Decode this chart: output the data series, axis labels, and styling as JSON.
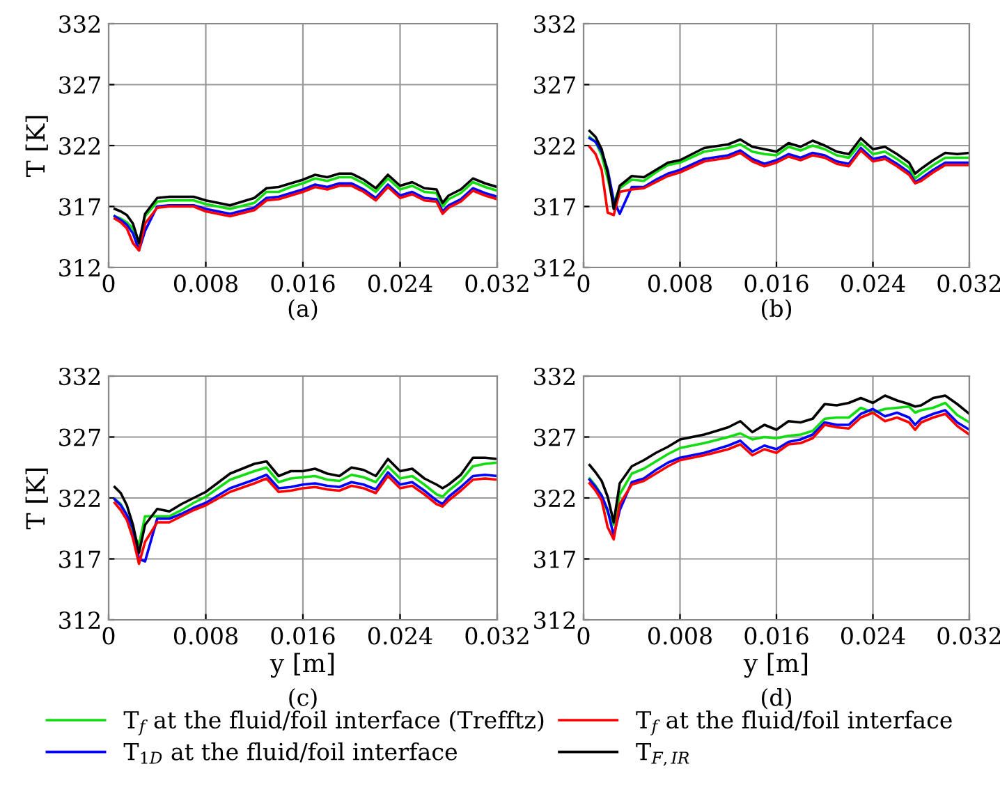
{
  "chart_data": [
    {
      "type": "line",
      "ylabel": "T [K]",
      "annotations": [
        "(a)"
      ],
      "xlim": [
        0,
        0.032
      ],
      "ylim": [
        312,
        332
      ],
      "xticks": [
        0,
        0.008,
        0.016,
        0.024,
        0.032
      ],
      "yticks": [
        312,
        317,
        322,
        327,
        332
      ],
      "grid": true,
      "legend": false,
      "x": [
        0.0005,
        0.001,
        0.0015,
        0.002,
        0.0025,
        0.003,
        0.004,
        0.005,
        0.006,
        0.007,
        0.008,
        0.01,
        0.012,
        0.013,
        0.014,
        0.015,
        0.016,
        0.017,
        0.018,
        0.019,
        0.02,
        0.021,
        0.022,
        0.023,
        0.024,
        0.025,
        0.026,
        0.027,
        0.0275,
        0.028,
        0.029,
        0.03,
        0.031,
        0.032
      ],
      "series": [
        {
          "color": "#11dd11",
          "values": [
            316.2,
            316.0,
            315.7,
            315.2,
            313.8,
            316.2,
            317.4,
            317.5,
            317.5,
            317.5,
            317.2,
            316.8,
            317.3,
            318.2,
            318.2,
            318.6,
            318.9,
            319.3,
            319.1,
            319.4,
            319.4,
            318.9,
            318.2,
            319.3,
            318.4,
            318.7,
            318.2,
            318.1,
            317.0,
            317.6,
            318.1,
            319.0,
            318.6,
            318.3
          ]
        },
        {
          "color": "#0000ff",
          "values": [
            316.2,
            315.9,
            315.5,
            314.8,
            313.4,
            315.0,
            317.0,
            317.1,
            317.1,
            317.1,
            316.8,
            316.4,
            316.9,
            317.7,
            317.8,
            318.1,
            318.4,
            318.8,
            318.6,
            318.9,
            318.9,
            318.4,
            317.7,
            318.8,
            317.9,
            318.2,
            317.7,
            317.6,
            316.6,
            317.1,
            317.6,
            318.5,
            318.1,
            317.8
          ]
        },
        {
          "color": "#ff0000",
          "values": [
            316.0,
            315.7,
            315.2,
            314.0,
            313.4,
            315.6,
            316.9,
            317.0,
            317.0,
            317.0,
            316.6,
            316.2,
            316.7,
            317.5,
            317.6,
            317.9,
            318.2,
            318.6,
            318.4,
            318.7,
            318.7,
            318.2,
            317.5,
            318.6,
            317.7,
            318.0,
            317.5,
            317.4,
            316.4,
            316.9,
            317.4,
            318.3,
            317.9,
            317.6
          ]
        },
        {
          "color": "#000000",
          "values": [
            316.8,
            316.6,
            316.3,
            315.6,
            314.0,
            316.4,
            317.7,
            317.8,
            317.8,
            317.8,
            317.5,
            317.1,
            317.7,
            318.5,
            318.6,
            318.9,
            319.2,
            319.6,
            319.4,
            319.7,
            319.7,
            319.2,
            318.5,
            319.6,
            318.7,
            319.0,
            318.5,
            318.4,
            317.3,
            317.9,
            318.4,
            319.3,
            318.9,
            318.6
          ]
        }
      ]
    },
    {
      "type": "line",
      "annotations": [
        "(b)"
      ],
      "xlim": [
        0,
        0.032
      ],
      "ylim": [
        312,
        332
      ],
      "xticks": [
        0,
        0.008,
        0.016,
        0.024,
        0.032
      ],
      "yticks": [
        312,
        317,
        322,
        327,
        332
      ],
      "grid": true,
      "legend": false,
      "x": [
        0.0005,
        0.001,
        0.0015,
        0.002,
        0.0025,
        0.003,
        0.004,
        0.005,
        0.006,
        0.007,
        0.008,
        0.01,
        0.012,
        0.013,
        0.014,
        0.015,
        0.016,
        0.017,
        0.018,
        0.019,
        0.02,
        0.021,
        0.022,
        0.023,
        0.024,
        0.025,
        0.026,
        0.027,
        0.0275,
        0.028,
        0.029,
        0.03,
        0.031,
        0.032
      ],
      "series": [
        {
          "color": "#11dd11",
          "values": [
            322.7,
            322.3,
            321.2,
            319.3,
            317.3,
            318.5,
            319.2,
            319.1,
            319.8,
            320.4,
            320.6,
            321.5,
            321.8,
            322.1,
            321.5,
            321.3,
            321.2,
            321.9,
            321.6,
            322.0,
            321.7,
            321.2,
            321.0,
            322.2,
            321.3,
            321.5,
            320.9,
            320.2,
            319.3,
            319.7,
            320.4,
            321.0,
            321.0,
            321.0
          ]
        },
        {
          "color": "#0000ff",
          "values": [
            322.6,
            322.3,
            321.5,
            320.0,
            317.5,
            316.4,
            318.6,
            318.6,
            319.2,
            319.7,
            320.0,
            320.9,
            321.2,
            321.6,
            320.9,
            320.5,
            320.8,
            321.3,
            321.0,
            321.4,
            321.2,
            320.7,
            320.5,
            321.8,
            320.9,
            321.1,
            320.5,
            319.8,
            319.0,
            319.3,
            320.0,
            320.6,
            320.6,
            320.6
          ]
        },
        {
          "color": "#ff0000",
          "values": [
            321.9,
            321.3,
            320.0,
            316.5,
            316.3,
            318.2,
            318.4,
            318.5,
            319.0,
            319.5,
            319.8,
            320.7,
            321.0,
            321.4,
            320.7,
            320.3,
            320.6,
            321.1,
            320.8,
            321.2,
            321.0,
            320.5,
            320.3,
            321.6,
            320.7,
            320.9,
            320.3,
            319.6,
            318.9,
            319.1,
            319.8,
            320.4,
            320.4,
            320.4
          ]
        },
        {
          "color": "#000000",
          "values": [
            323.2,
            322.7,
            321.7,
            319.8,
            316.8,
            318.7,
            319.5,
            319.4,
            320.0,
            320.6,
            320.8,
            321.8,
            322.1,
            322.5,
            321.9,
            321.7,
            321.5,
            322.2,
            321.9,
            322.4,
            322.0,
            321.5,
            321.3,
            322.6,
            321.7,
            321.9,
            321.3,
            320.6,
            319.7,
            320.1,
            320.8,
            321.4,
            321.3,
            321.4
          ]
        }
      ]
    },
    {
      "type": "line",
      "xlabel": "y [m]",
      "ylabel": "T [K]",
      "annotations": [
        "(c)"
      ],
      "xlim": [
        0,
        0.032
      ],
      "ylim": [
        312,
        332
      ],
      "xticks": [
        0,
        0.008,
        0.016,
        0.024,
        0.032
      ],
      "yticks": [
        312,
        317,
        322,
        327,
        332
      ],
      "grid": true,
      "legend": false,
      "x": [
        0.0005,
        0.001,
        0.0015,
        0.002,
        0.0025,
        0.003,
        0.004,
        0.005,
        0.006,
        0.007,
        0.008,
        0.01,
        0.012,
        0.013,
        0.014,
        0.015,
        0.016,
        0.017,
        0.018,
        0.019,
        0.02,
        0.021,
        0.022,
        0.023,
        0.024,
        0.025,
        0.026,
        0.027,
        0.0275,
        0.028,
        0.029,
        0.03,
        0.031,
        0.032
      ],
      "series": [
        {
          "color": "#11dd11",
          "values": [
            321.9,
            321.5,
            320.6,
            319.0,
            318.2,
            320.5,
            320.5,
            320.5,
            321.0,
            321.6,
            322.1,
            323.5,
            324.2,
            324.5,
            323.3,
            323.6,
            323.7,
            323.8,
            323.5,
            323.4,
            323.9,
            323.7,
            323.3,
            324.6,
            323.6,
            323.8,
            323.1,
            322.3,
            322.1,
            322.6,
            323.4,
            324.6,
            324.8,
            324.9
          ]
        },
        {
          "color": "#0000ff",
          "values": [
            321.9,
            321.4,
            320.6,
            319.5,
            317.0,
            316.8,
            320.3,
            320.3,
            320.7,
            321.2,
            321.6,
            322.8,
            323.5,
            323.9,
            322.8,
            322.9,
            323.1,
            323.2,
            323.0,
            322.9,
            323.3,
            323.1,
            322.7,
            324.1,
            323.1,
            323.3,
            322.6,
            321.8,
            321.5,
            322.1,
            322.9,
            323.8,
            323.9,
            323.8
          ]
        },
        {
          "color": "#ff0000",
          "values": [
            321.6,
            321.0,
            320.2,
            318.7,
            316.6,
            318.4,
            320.0,
            320.0,
            320.5,
            321.0,
            321.4,
            322.5,
            323.2,
            323.6,
            322.5,
            322.6,
            322.8,
            322.9,
            322.7,
            322.6,
            323.0,
            322.8,
            322.4,
            323.8,
            322.8,
            323.0,
            322.3,
            321.5,
            321.3,
            321.8,
            322.6,
            323.5,
            323.6,
            323.5
          ]
        },
        {
          "color": "#000000",
          "values": [
            322.9,
            322.4,
            321.4,
            319.8,
            317.5,
            319.8,
            321.1,
            320.9,
            321.5,
            322.0,
            322.5,
            324.0,
            324.8,
            325.0,
            323.8,
            324.2,
            324.2,
            324.4,
            324.0,
            323.8,
            324.5,
            324.3,
            323.8,
            325.2,
            324.2,
            324.4,
            323.6,
            323.1,
            322.8,
            323.1,
            323.9,
            325.3,
            325.3,
            325.2
          ]
        }
      ]
    },
    {
      "type": "line",
      "xlabel": "y [m]",
      "annotations": [
        "(d)"
      ],
      "xlim": [
        0,
        0.032
      ],
      "ylim": [
        312,
        332
      ],
      "xticks": [
        0,
        0.008,
        0.016,
        0.024,
        0.032
      ],
      "yticks": [
        312,
        317,
        322,
        327,
        332
      ],
      "grid": true,
      "legend": "bottom",
      "x": [
        0.0005,
        0.001,
        0.0015,
        0.002,
        0.0025,
        0.003,
        0.004,
        0.005,
        0.006,
        0.007,
        0.008,
        0.01,
        0.012,
        0.013,
        0.014,
        0.015,
        0.016,
        0.017,
        0.018,
        0.019,
        0.02,
        0.021,
        0.022,
        0.023,
        0.024,
        0.025,
        0.026,
        0.027,
        0.0275,
        0.028,
        0.029,
        0.03,
        0.031,
        0.032
      ],
      "series": [
        {
          "name": "T$_{f}$ at the fluid/foil interface (Trefftz)",
          "color": "#11dd11",
          "values": [
            323.6,
            323.0,
            322.2,
            320.8,
            319.8,
            322.3,
            324.0,
            324.4,
            325.0,
            325.6,
            326.1,
            326.5,
            327.0,
            327.3,
            326.8,
            327.0,
            326.9,
            327.1,
            327.2,
            327.5,
            328.5,
            328.6,
            328.6,
            329.4,
            329.0,
            329.3,
            329.4,
            329.5,
            329.0,
            329.2,
            329.4,
            329.8,
            328.8,
            328.2
          ]
        },
        {
          "name": "T$_{1D}$ at the fluid/foil interface",
          "color": "#0000ff",
          "values": [
            323.5,
            322.9,
            322.2,
            321.0,
            318.9,
            321.0,
            323.3,
            323.6,
            324.3,
            324.9,
            325.3,
            325.7,
            326.3,
            326.7,
            325.8,
            326.3,
            326.0,
            326.6,
            326.8,
            327.2,
            328.2,
            328.0,
            328.0,
            328.9,
            329.3,
            328.7,
            329.0,
            328.6,
            328.0,
            328.5,
            328.9,
            329.2,
            328.2,
            327.6
          ]
        },
        {
          "name": "T$_{f}$ at the fluid/foil interface",
          "color": "#ff0000",
          "values": [
            323.2,
            322.6,
            321.8,
            319.6,
            318.6,
            321.5,
            323.1,
            323.4,
            324.0,
            324.6,
            325.1,
            325.5,
            326.0,
            326.4,
            325.5,
            326.0,
            325.7,
            326.4,
            326.5,
            326.9,
            328.0,
            327.8,
            327.7,
            328.6,
            329.0,
            328.3,
            328.6,
            328.2,
            327.6,
            328.2,
            328.6,
            328.9,
            327.9,
            327.2
          ]
        },
        {
          "name": "T$_{F,IR}$",
          "color": "#000000",
          "values": [
            324.7,
            324.1,
            323.4,
            322.1,
            320.0,
            323.2,
            324.6,
            325.1,
            325.7,
            326.2,
            326.8,
            327.2,
            327.8,
            328.3,
            327.4,
            328.0,
            327.6,
            328.3,
            328.2,
            328.5,
            329.7,
            329.6,
            329.8,
            330.2,
            329.8,
            330.4,
            330.0,
            329.7,
            329.5,
            329.6,
            330.2,
            330.4,
            329.7,
            328.9
          ]
        }
      ]
    }
  ]
}
